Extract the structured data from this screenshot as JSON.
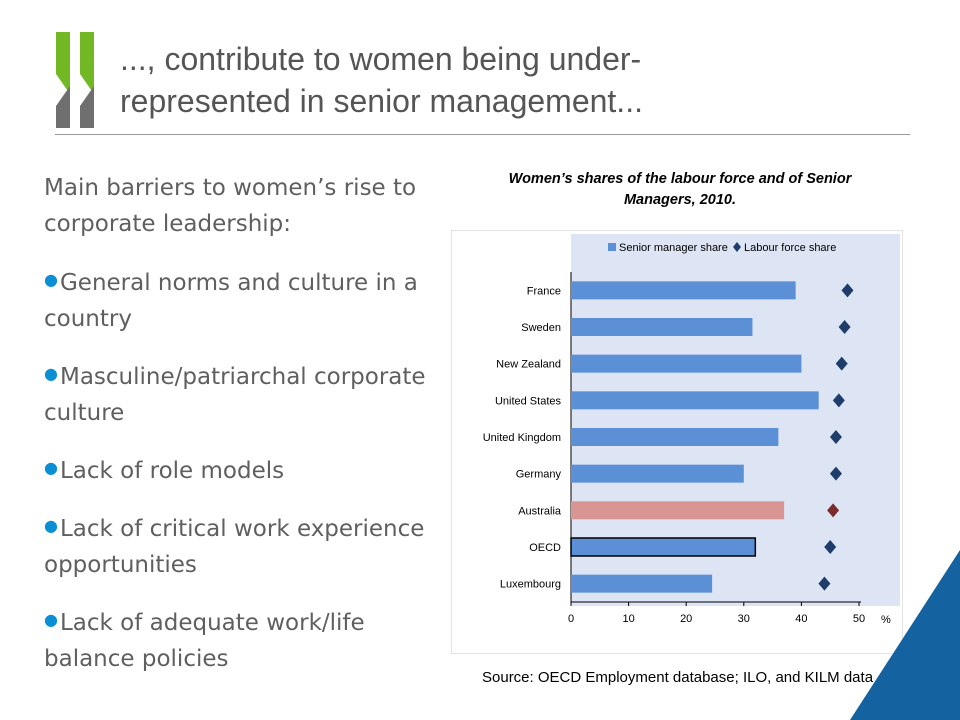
{
  "slide": {
    "title_line1": "..., contribute to women being under-",
    "title_line2": "represented in senior management...",
    "accent_color": "#0b8fd4",
    "corner_color": "#1463a0"
  },
  "content": {
    "intro": "Main barriers to women’s rise to corporate leadership:",
    "bullets": [
      "General norms and culture in a country",
      "Masculine/patriarchal corporate culture",
      "Lack of role models",
      "Lack of critical work experience opportunities",
      "Lack of adequate work/life balance policies"
    ]
  },
  "chart_data": {
    "type": "bar",
    "orientation": "horizontal",
    "title": "Women’s shares of the labour force and of Senior Managers, 2010.",
    "categories": [
      "France",
      "Sweden",
      "New Zealand",
      "United States",
      "United Kingdom",
      "Germany",
      "Australia",
      "OECD",
      "Luxembourg"
    ],
    "series": [
      {
        "name": "Senior manager share",
        "marker": "bar",
        "color": "#5b8fd6",
        "values": [
          39,
          31.5,
          40,
          43,
          36,
          30,
          37,
          32,
          24.5
        ]
      },
      {
        "name": "Labour force share",
        "marker": "diamond",
        "color": "#1f3d6b",
        "values": [
          48,
          47.5,
          47,
          46.5,
          46,
          46,
          45.5,
          45,
          44
        ]
      }
    ],
    "highlight": {
      "Australia": "#d99594",
      "OECD": "outline"
    },
    "xlim": [
      0,
      50
    ],
    "xticks": [
      0,
      10,
      20,
      30,
      40,
      50
    ],
    "xunit": "%",
    "legend_position": "top",
    "grid": false,
    "source": "Source: OECD Employment database; ILO, and KILM data"
  }
}
